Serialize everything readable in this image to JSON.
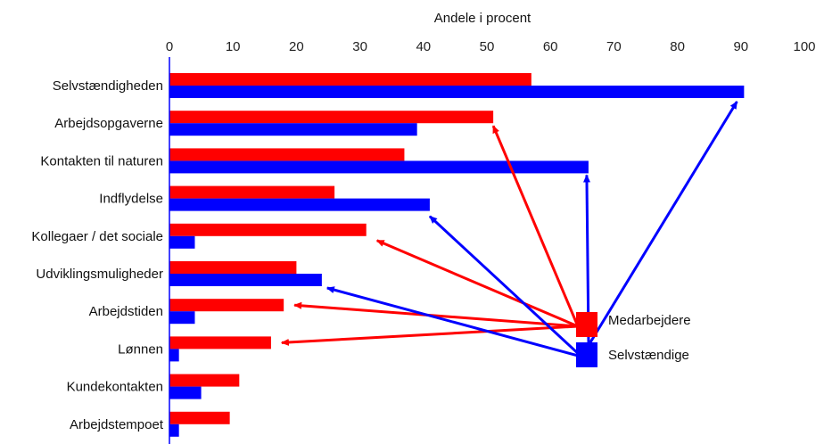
{
  "chart_data": {
    "type": "bar",
    "orientation": "horizontal",
    "xlabel": "Andele i procent",
    "xlim": [
      0,
      100
    ],
    "xticks": [
      0,
      10,
      20,
      30,
      40,
      50,
      60,
      70,
      80,
      90,
      100
    ],
    "categories": [
      "Selvstændigheden",
      "Arbejdsopgaverne",
      "Kontakten til naturen",
      "Indflydelse",
      "Kollegaer / det sociale",
      "Udviklingsmuligheder",
      "Arbejdstiden",
      "Lønnen",
      "Kundekontakten",
      "Arbejdstempoet"
    ],
    "series": [
      {
        "name": "Medarbejdere",
        "color": "#ff0000",
        "values": [
          57,
          51,
          37,
          26,
          31,
          20,
          18,
          16,
          11,
          9.5
        ]
      },
      {
        "name": "Selvstændige",
        "color": "#0000ff",
        "values": [
          90.5,
          39,
          66,
          41,
          4,
          24,
          4,
          1.5,
          5,
          1.5
        ]
      }
    ],
    "legend": "right-middle",
    "grid": false
  }
}
